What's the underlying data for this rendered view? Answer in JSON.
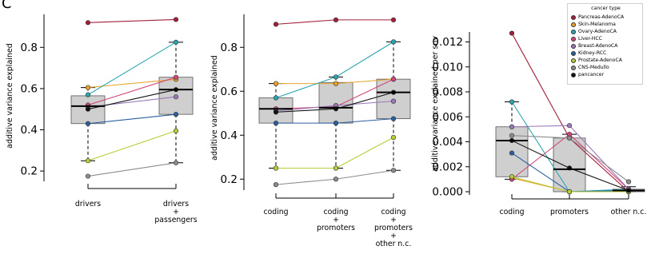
{
  "panel_letter": "C",
  "legend": {
    "title": "cancer type",
    "items": [
      {
        "name": "Pancreas-AdenoCA",
        "color": "#a0203a"
      },
      {
        "name": "Skin-Melanoma",
        "color": "#e8a42a"
      },
      {
        "name": "Ovary-AdenoCA",
        "color": "#2aa6b2"
      },
      {
        "name": "Liver-HCC",
        "color": "#d1477a"
      },
      {
        "name": "Breast-AdenoCA",
        "color": "#9a78b8"
      },
      {
        "name": "Kidney-RCC",
        "color": "#2a5f9e"
      },
      {
        "name": "Prostate-AdenoCA",
        "color": "#b9cb36"
      },
      {
        "name": "CNS-Medullo",
        "color": "#8c8c8c"
      },
      {
        "name": "pancancer",
        "color": "#111111"
      }
    ]
  },
  "chart_data": [
    {
      "type": "box",
      "ylabel": "additive variance explained",
      "ylim": [
        0.15,
        0.96
      ],
      "yticks": [
        "0.2",
        "0.4",
        "0.6",
        "0.8"
      ],
      "ytick_values": [
        0.2,
        0.4,
        0.6,
        0.8
      ],
      "categories": [
        "drivers",
        "drivers\n+\npassengers"
      ],
      "boxes": [
        {
          "q1": 0.43,
          "median": 0.515,
          "q3": 0.565,
          "whisker_low": 0.25,
          "whisker_high": 0.605
        },
        {
          "q1": 0.475,
          "median": 0.595,
          "q3": 0.655,
          "whisker_low": 0.24,
          "whisker_high": 0.825
        }
      ],
      "series": [
        {
          "name": "Pancreas-AdenoCA",
          "values": [
            0.92,
            0.935
          ]
        },
        {
          "name": "Skin-Melanoma",
          "values": [
            0.605,
            0.645
          ]
        },
        {
          "name": "Ovary-AdenoCA",
          "values": [
            0.57,
            0.825
          ]
        },
        {
          "name": "Liver-HCC",
          "values": [
            0.52,
            0.655
          ]
        },
        {
          "name": "Breast-AdenoCA",
          "values": [
            0.51,
            0.56
          ]
        },
        {
          "name": "Kidney-RCC",
          "values": [
            0.43,
            0.475
          ]
        },
        {
          "name": "Prostate-AdenoCA",
          "values": [
            0.25,
            0.395
          ]
        },
        {
          "name": "CNS-Medullo",
          "values": [
            0.175,
            0.24
          ]
        },
        {
          "name": "pancancer",
          "values": [
            0.5,
            0.595
          ]
        }
      ]
    },
    {
      "type": "box",
      "ylabel": "additive variance explained",
      "ylim": [
        0.15,
        0.95
      ],
      "yticks": [
        "0.2",
        "0.4",
        "0.6",
        "0.8"
      ],
      "ytick_values": [
        0.2,
        0.4,
        0.6,
        0.8
      ],
      "categories": [
        "coding",
        "coding\n+\npromoters",
        "coding\n+\npromoters\n+\nother n.c."
      ],
      "boxes": [
        {
          "q1": 0.455,
          "median": 0.52,
          "q3": 0.57,
          "whisker_low": 0.25,
          "whisker_high": 0.635
        },
        {
          "q1": 0.455,
          "median": 0.525,
          "q3": 0.64,
          "whisker_low": 0.25,
          "whisker_high": 0.665
        },
        {
          "q1": 0.475,
          "median": 0.595,
          "q3": 0.655,
          "whisker_low": 0.24,
          "whisker_high": 0.825
        }
      ],
      "series": [
        {
          "name": "Pancreas-AdenoCA",
          "values": [
            0.905,
            0.925,
            0.925
          ]
        },
        {
          "name": "Skin-Melanoma",
          "values": [
            0.635,
            0.635,
            0.655
          ]
        },
        {
          "name": "Ovary-AdenoCA",
          "values": [
            0.57,
            0.665,
            0.825
          ]
        },
        {
          "name": "Liver-HCC",
          "values": [
            0.52,
            0.53,
            0.655
          ]
        },
        {
          "name": "Breast-AdenoCA",
          "values": [
            0.51,
            0.535,
            0.555
          ]
        },
        {
          "name": "Kidney-RCC",
          "values": [
            0.455,
            0.455,
            0.475
          ]
        },
        {
          "name": "Prostate-AdenoCA",
          "values": [
            0.25,
            0.25,
            0.39
          ]
        },
        {
          "name": "CNS-Medullo",
          "values": [
            0.175,
            0.2,
            0.24
          ]
        },
        {
          "name": "pancancer",
          "values": [
            0.505,
            0.52,
            0.595
          ]
        }
      ]
    },
    {
      "type": "box",
      "ylabel": "additive variance explained per snv",
      "ylim": [
        0,
        0.0128
      ],
      "yticks": [
        "0.000",
        "0.002",
        "0.004",
        "0.006",
        "0.008",
        "0.010",
        "0.012"
      ],
      "ytick_values": [
        0,
        0.002,
        0.004,
        0.006,
        0.008,
        0.01,
        0.012
      ],
      "categories": [
        "coding",
        "promoters",
        "other n.c."
      ],
      "boxes": [
        {
          "q1": 0.0012,
          "median": 0.0041,
          "q3": 0.0052,
          "whisker_low": 0.001,
          "whisker_high": 0.0072
        },
        {
          "q1": 0.0,
          "median": 0.0018,
          "q3": 0.0043,
          "whisker_low": 0.0,
          "whisker_high": 0.0046
        },
        {
          "q1": 0.0,
          "median": 0.0001,
          "q3": 0.0002,
          "whisker_low": 0.0,
          "whisker_high": 0.0004
        }
      ],
      "series": [
        {
          "name": "Pancreas-AdenoCA",
          "values": [
            0.0127,
            0.0043,
            0.0
          ]
        },
        {
          "name": "Skin-Melanoma",
          "values": [
            0.0011,
            0.0,
            0.0
          ]
        },
        {
          "name": "Ovary-AdenoCA",
          "values": [
            0.0072,
            0.0,
            0.0002
          ]
        },
        {
          "name": "Liver-HCC",
          "values": [
            0.001,
            0.0046,
            0.0002
          ]
        },
        {
          "name": "Breast-AdenoCA",
          "values": [
            0.0052,
            0.0053,
            0.0002
          ]
        },
        {
          "name": "Kidney-RCC",
          "values": [
            0.0031,
            0.0,
            0.0001
          ]
        },
        {
          "name": "Prostate-AdenoCA",
          "values": [
            0.0012,
            0.0,
            0.0
          ]
        },
        {
          "name": "CNS-Medullo",
          "values": [
            0.0045,
            0.0043,
            0.0008
          ]
        },
        {
          "name": "pancancer",
          "values": [
            0.0041,
            0.0019,
            0.0001
          ]
        }
      ]
    }
  ]
}
